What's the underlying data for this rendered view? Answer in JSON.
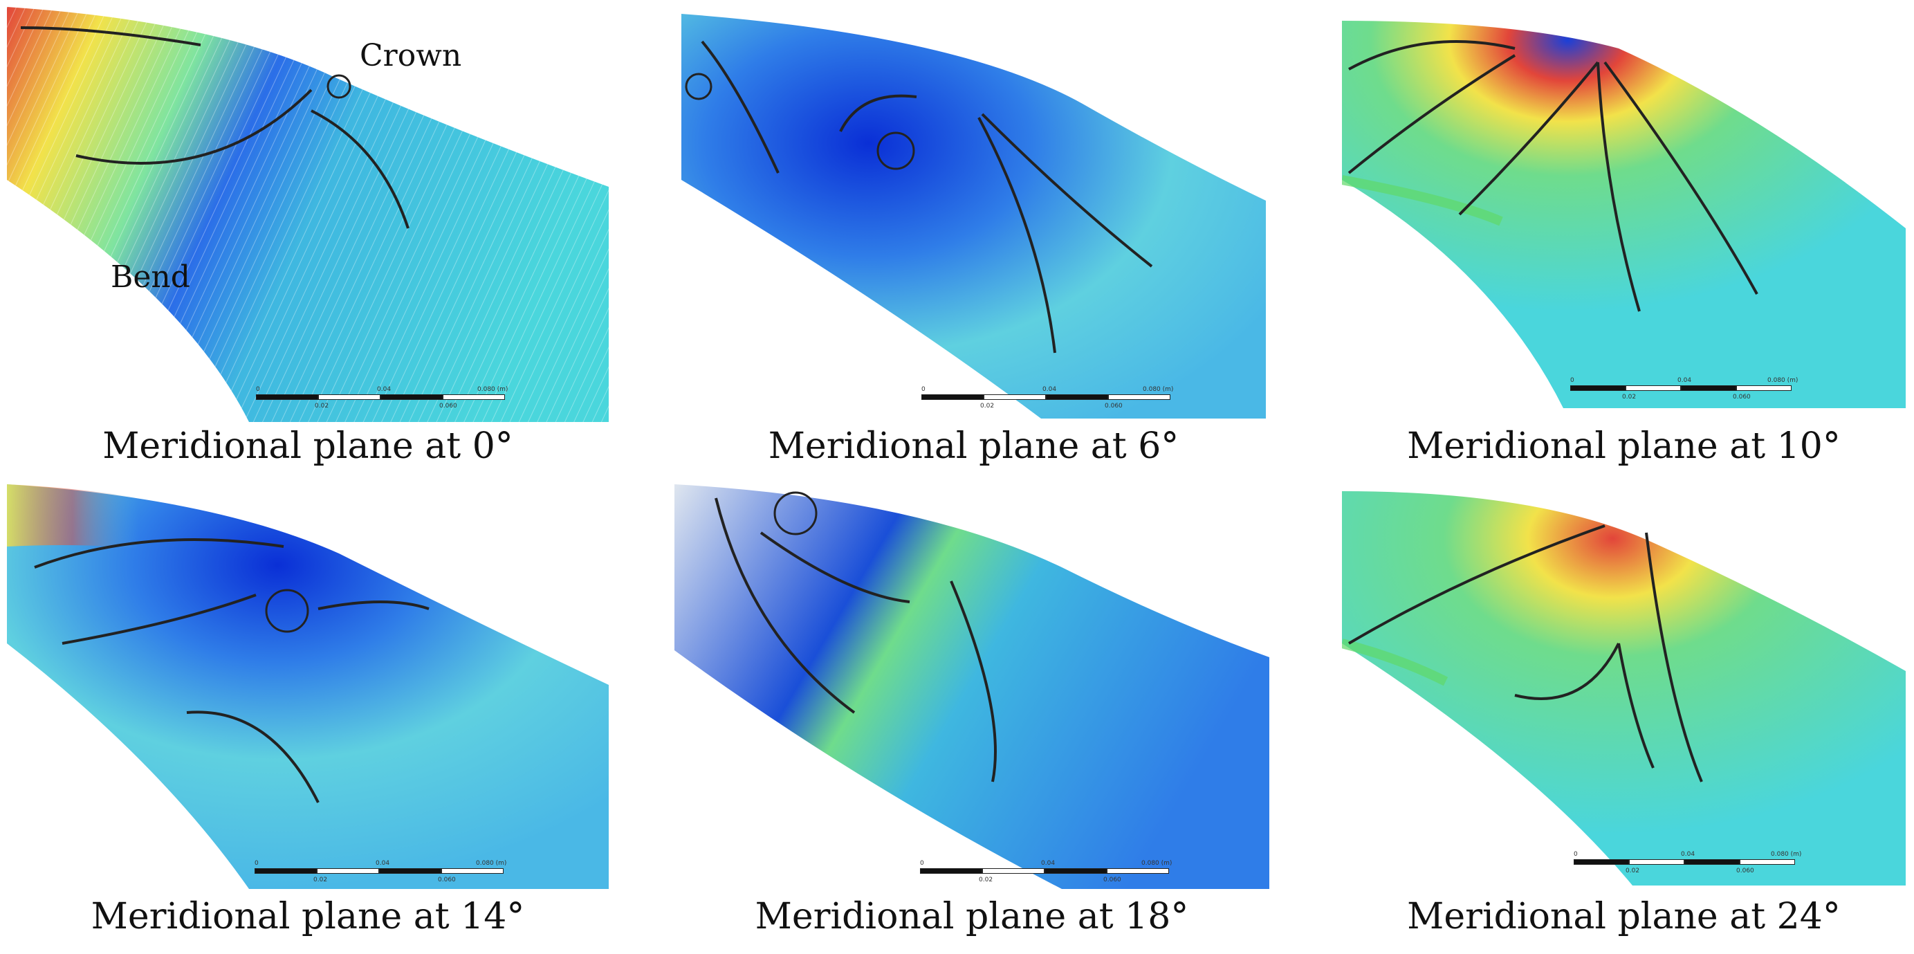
{
  "panels": [
    {
      "caption": "Meridional plane at 0°",
      "labels": [
        "Crown",
        "Bend"
      ]
    },
    {
      "caption": "Meridional plane at 6°"
    },
    {
      "caption": "Meridional plane at 10°"
    },
    {
      "caption": "Meridional plane at 14°"
    },
    {
      "caption": "Meridional plane at 18°"
    },
    {
      "caption": "Meridional plane at 24°"
    }
  ],
  "scale_bar": {
    "ticks": [
      "0",
      "0.02",
      "0.04",
      "0.060",
      "0.080 (m)"
    ]
  },
  "colors": {
    "low": "#0a2fd6",
    "mid": "#35c7e0",
    "high_green": "#5fd86a",
    "high_yellow": "#f2e24a",
    "peak": "#e0291e"
  }
}
